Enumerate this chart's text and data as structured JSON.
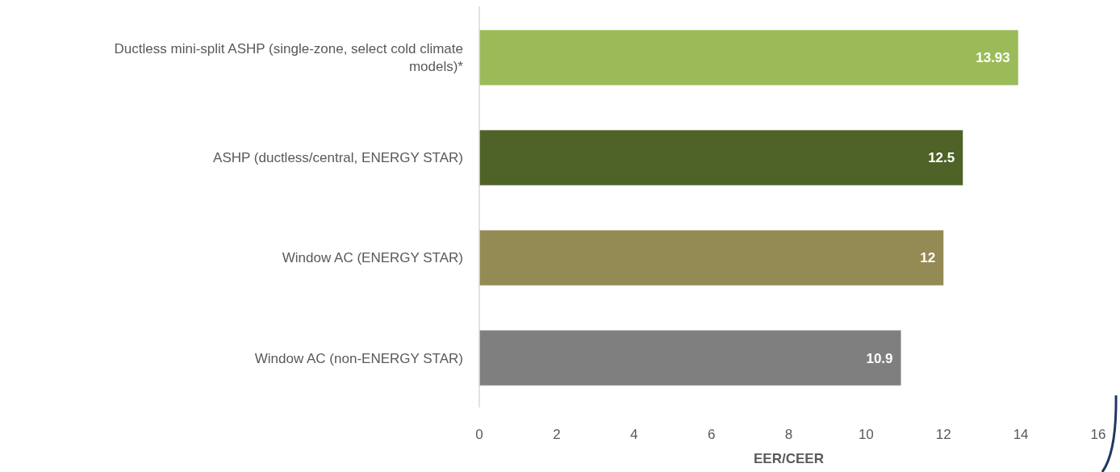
{
  "chart_data": {
    "type": "bar",
    "orientation": "horizontal",
    "xlabel": "EER/CEER",
    "categories": [
      "Ductless mini-split ASHP (single-zone, select cold climate models)*",
      "ASHP (ductless/central, ENERGY STAR)",
      "Window AC (ENERGY STAR)",
      "Window AC (non-ENERGY STAR)"
    ],
    "values": [
      13.93,
      12.5,
      12,
      10.9
    ],
    "colors": [
      "#9bbb59",
      "#4f6228",
      "#948a54",
      "#7f7f7f"
    ],
    "xlim": [
      0,
      16
    ],
    "xticks": [
      0,
      2,
      4,
      6,
      8,
      10,
      12,
      14,
      16
    ],
    "data_labels": true,
    "grid": false
  }
}
